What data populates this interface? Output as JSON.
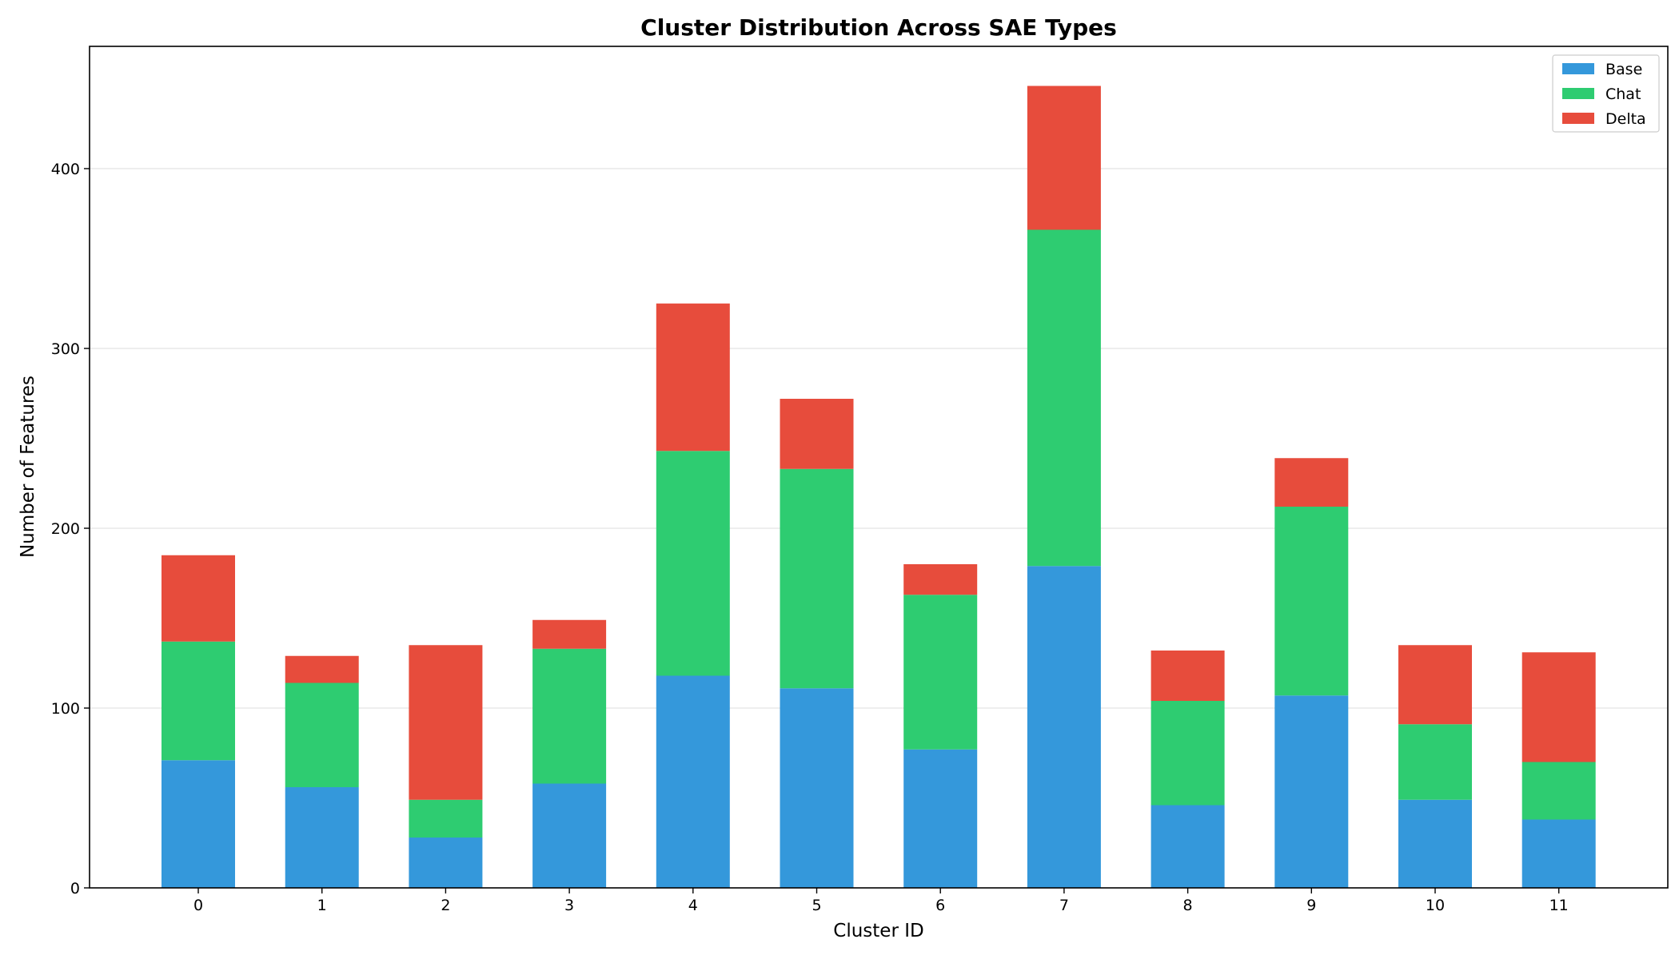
{
  "chart_data": {
    "type": "bar",
    "stacked": true,
    "title": "Cluster Distribution Across SAE Types",
    "xlabel": "Cluster ID",
    "ylabel": "Number of Features",
    "categories": [
      "0",
      "1",
      "2",
      "3",
      "4",
      "5",
      "6",
      "7",
      "8",
      "9",
      "10",
      "11"
    ],
    "series": [
      {
        "name": "Base",
        "color": "#3498db",
        "values": [
          71,
          56,
          28,
          58,
          118,
          111,
          77,
          179,
          46,
          107,
          49,
          38
        ]
      },
      {
        "name": "Chat",
        "color": "#2ecc71",
        "values": [
          66,
          58,
          21,
          75,
          125,
          122,
          86,
          187,
          58,
          105,
          42,
          32
        ]
      },
      {
        "name": "Delta",
        "color": "#e74c3c",
        "values": [
          48,
          15,
          86,
          16,
          82,
          39,
          17,
          80,
          28,
          27,
          44,
          61
        ]
      }
    ],
    "ylim": [
      0,
      468
    ],
    "yticks": [
      0,
      100,
      200,
      300,
      400
    ],
    "grid": "y",
    "legend_position": "top-right"
  }
}
